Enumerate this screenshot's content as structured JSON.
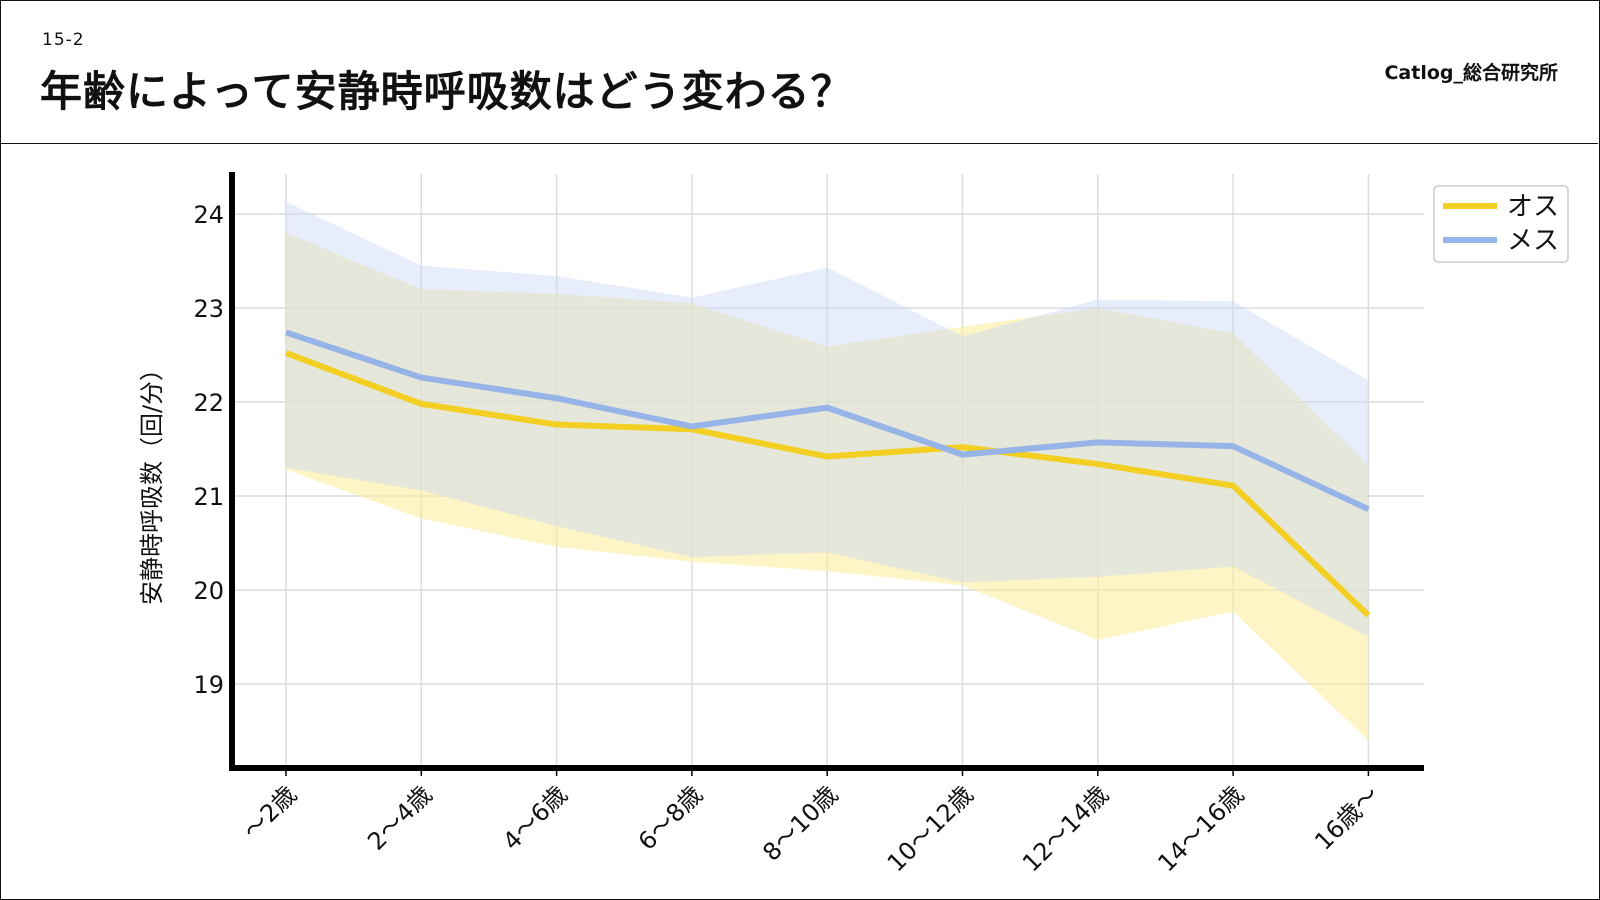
{
  "header": {
    "section_number": "15-2",
    "title": "年齢によって安静時呼吸数はどう変わる？",
    "brand": "Catlog_総合研究所"
  },
  "colors": {
    "male": "#f2cf22",
    "female": "#97b4e8",
    "male_band": "#fbeea0",
    "female_band": "#c9d8f4"
  },
  "chart_data": {
    "type": "line",
    "title": "",
    "xlabel": "",
    "ylabel": "安静時呼吸数（回/分）",
    "ylim": [
      18.2,
      24.5
    ],
    "yticks": [
      19,
      20,
      21,
      22,
      23,
      24
    ],
    "grid": true,
    "legend_position": "top-right",
    "categories": [
      "〜2歳",
      "2〜4歳",
      "4〜6歳",
      "6〜8歳",
      "8〜10歳",
      "10〜12歳",
      "12〜14歳",
      "14〜16歳",
      "16歳〜"
    ],
    "series": [
      {
        "name": "オス",
        "color": "#f2cf22",
        "values": [
          22.52,
          21.98,
          21.76,
          21.71,
          21.42,
          21.52,
          21.34,
          21.11,
          19.73
        ],
        "lower": [
          21.28,
          20.76,
          20.46,
          20.3,
          20.2,
          20.05,
          19.47,
          19.77,
          18.4
        ],
        "upper": [
          23.8,
          23.2,
          23.15,
          23.05,
          22.59,
          22.8,
          23.0,
          22.73,
          21.33
        ]
      },
      {
        "name": "メス",
        "color": "#97b4e8",
        "values": [
          22.74,
          22.26,
          22.04,
          21.74,
          21.94,
          21.44,
          21.57,
          21.53,
          20.86
        ],
        "lower": [
          21.3,
          21.06,
          20.68,
          20.35,
          20.4,
          20.08,
          20.14,
          20.25,
          19.5
        ],
        "upper": [
          24.13,
          23.45,
          23.34,
          23.11,
          23.43,
          22.7,
          23.09,
          23.07,
          22.23
        ]
      }
    ]
  }
}
